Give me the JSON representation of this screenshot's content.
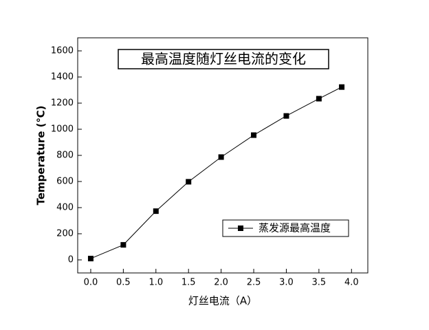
{
  "chart_data": {
    "type": "line",
    "title": "最高温度随灯丝电流的变化",
    "x_label": "灯丝电流（A）",
    "y_label": "Temperature (℃)",
    "x": [
      0,
      0.5,
      1,
      1.5,
      2,
      2.5,
      3,
      3.5,
      3.85
    ],
    "series": [
      {
        "name": "蒸发源最高温度",
        "color": "#000000",
        "values": [
          10,
          115,
          373,
          598,
          787,
          955,
          1102,
          1234,
          1323
        ]
      }
    ],
    "xlim": [
      -0.2,
      4.25
    ],
    "ylim": [
      -100,
      1700
    ],
    "xticks": [
      {
        "value": 0,
        "label": "0.0"
      },
      {
        "value": 0.5,
        "label": "0.5"
      },
      {
        "value": 1,
        "label": "1.0"
      },
      {
        "value": 1.5,
        "label": "1.5"
      },
      {
        "value": 2,
        "label": "2.0"
      },
      {
        "value": 2.5,
        "label": "2.5"
      },
      {
        "value": 3,
        "label": "3.0"
      },
      {
        "value": 3.5,
        "label": "3.5"
      },
      {
        "value": 4,
        "label": "4.0"
      }
    ],
    "yticks": [
      0,
      200,
      400,
      600,
      800,
      1000,
      1200,
      1400,
      1600
    ],
    "legend": "lower right",
    "grid": false
  }
}
